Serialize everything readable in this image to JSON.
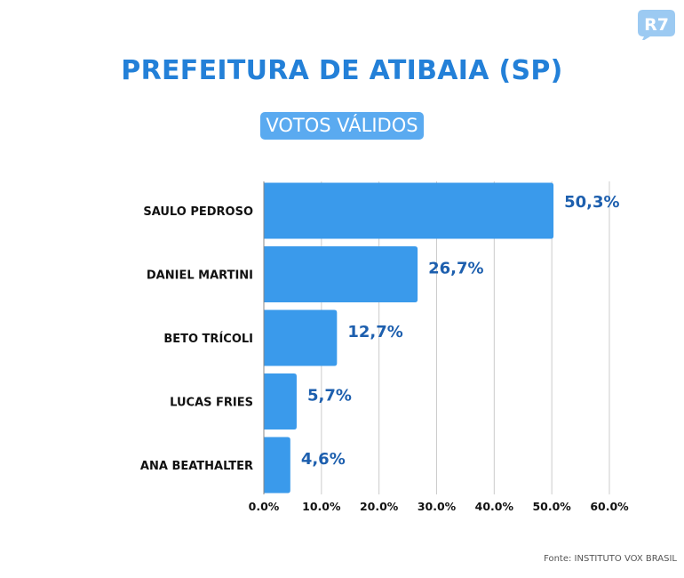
{
  "header": {
    "title": "PREFEITURA DE ATIBAIA (SP)",
    "subtitle": "VOTOS VÁLIDOS",
    "logo_text": "R7"
  },
  "footer": {
    "source": "Fonte: INSTITUTO VOX BRASIL"
  },
  "colors": {
    "bar": "#3a9aeb",
    "value_label": "#1d5fae",
    "title": "#2380d8",
    "gridline": "#cccccc"
  },
  "chart_data": {
    "type": "bar",
    "orientation": "horizontal",
    "title": "PREFEITURA DE ATIBAIA (SP)",
    "subtitle": "VOTOS VÁLIDOS",
    "categories": [
      "SAULO PEDROSO",
      "DANIEL MARTINI",
      "BETO TRÍCOLI",
      "LUCAS FRIES",
      "ANA BEATHALTER"
    ],
    "values": [
      50.3,
      26.7,
      12.7,
      5.7,
      4.6
    ],
    "value_labels": [
      "50,3%",
      "26,7%",
      "12,7%",
      "5,7%",
      "4,6%"
    ],
    "xlim": [
      0,
      60
    ],
    "xticks": [
      0,
      10,
      20,
      30,
      40,
      50,
      60
    ],
    "xtick_labels": [
      "0.0%",
      "10.0%",
      "20.0%",
      "30.0%",
      "40.0%",
      "50.0%",
      "60.0%"
    ],
    "grid": "vertical",
    "xlabel": "",
    "ylabel": ""
  }
}
